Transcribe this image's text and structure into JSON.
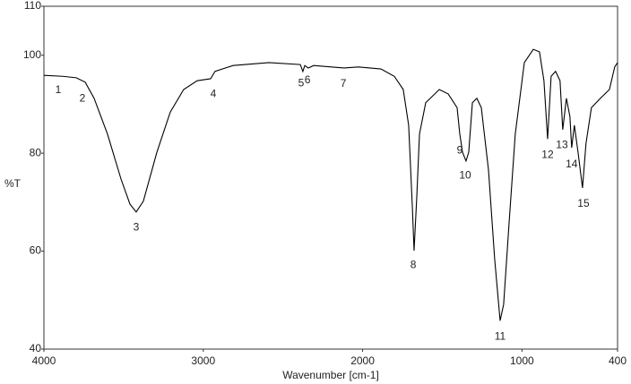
{
  "chart_data": {
    "type": "line",
    "x_label": "Wavenumber [cm-1]",
    "y_label": "%T",
    "xlim": [
      4000,
      400
    ],
    "ylim": [
      40,
      110
    ],
    "xticks": [
      4000,
      3000,
      2000,
      1000,
      400
    ],
    "yticks": [
      40,
      60,
      80,
      100,
      110
    ],
    "grid": false,
    "series": [
      {
        "name": null,
        "color": "#000000",
        "x": [
          4000,
          3882,
          3797,
          3741,
          3685,
          3601,
          3516,
          3460,
          3421,
          3376,
          3291,
          3207,
          3123,
          3038,
          2954,
          2926,
          2813,
          2588,
          2391,
          2375,
          2363,
          2341,
          2307,
          2116,
          2026,
          1885,
          1801,
          1745,
          1711,
          1688,
          1677,
          1660,
          1643,
          1604,
          1519,
          1463,
          1407,
          1390,
          1373,
          1351,
          1334,
          1311,
          1283,
          1255,
          1210,
          1171,
          1137,
          1115,
          1081,
          1042,
          985,
          929,
          890,
          862,
          839,
          817,
          789,
          761,
          744,
          721,
          699,
          688,
          671,
          648,
          620,
          598,
          564,
          508,
          451,
          418,
          400
        ],
        "values": [
          95.9,
          95.7,
          95.4,
          94.5,
          91.2,
          83.9,
          74.7,
          69.6,
          68.0,
          70.2,
          80.2,
          88.4,
          93.0,
          94.8,
          95.2,
          96.7,
          97.9,
          98.5,
          98.1,
          96.7,
          97.9,
          97.4,
          97.9,
          97.4,
          97.6,
          97.2,
          95.7,
          93.0,
          85.7,
          69.2,
          60.1,
          71.1,
          83.9,
          90.3,
          93.0,
          92.1,
          89.3,
          83.9,
          80.2,
          78.4,
          80.2,
          90.3,
          91.2,
          89.3,
          76.6,
          58.3,
          45.8,
          49.1,
          65.6,
          83.9,
          98.5,
          101.2,
          100.7,
          94.8,
          82.9,
          95.7,
          96.7,
          94.8,
          84.8,
          91.2,
          87.5,
          81.1,
          85.7,
          80.2,
          72.9,
          82.0,
          89.3,
          91.2,
          93.0,
          97.6,
          98.5
        ]
      }
    ],
    "annotations": [
      {
        "text": "1",
        "x": 3910,
        "y": 95.4
      },
      {
        "text": "2",
        "x": 3758,
        "y": 93.7
      },
      {
        "text": "3",
        "x": 3421,
        "y": 67.4
      },
      {
        "text": "4",
        "x": 2937,
        "y": 94.6
      },
      {
        "text": "5",
        "x": 2386,
        "y": 96.8
      },
      {
        "text": "6",
        "x": 2346,
        "y": 97.4
      },
      {
        "text": "7",
        "x": 2121,
        "y": 96.7
      },
      {
        "text": "8",
        "x": 1682,
        "y": 59.7
      },
      {
        "text": "9",
        "x": 1390,
        "y": 83.1
      },
      {
        "text": "10",
        "x": 1356,
        "y": 78.0
      },
      {
        "text": "11",
        "x": 1137,
        "y": 45.1
      },
      {
        "text": "12",
        "x": 839,
        "y": 82.2
      },
      {
        "text": "13",
        "x": 749,
        "y": 84.2
      },
      {
        "text": "14",
        "x": 688,
        "y": 80.2
      },
      {
        "text": "15",
        "x": 614,
        "y": 72.2
      }
    ]
  }
}
